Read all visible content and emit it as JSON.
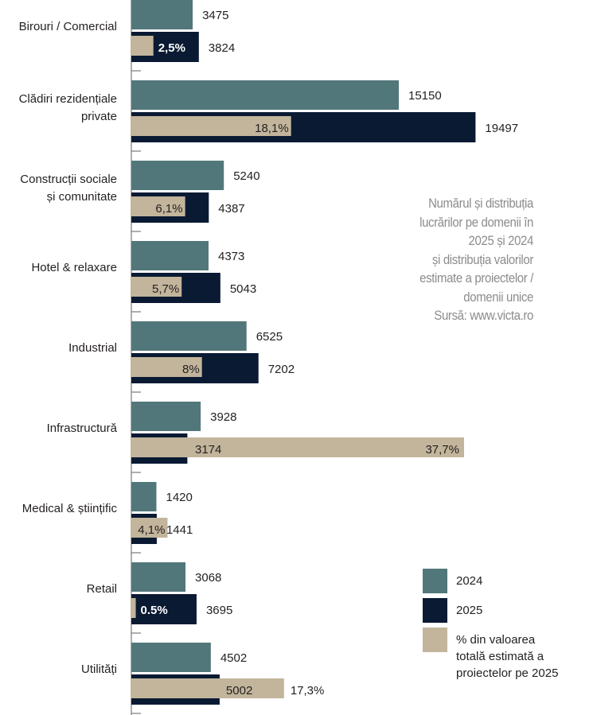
{
  "chart_data": {
    "type": "bar",
    "orientation": "horizontal",
    "title": "Numărul și distribuția lucrărilor pe domenii în 2025 și 2024 și distribuția valorilor estimate a proiectelor / domenii unice",
    "title_lines": [
      "Numărul și distribuția",
      "lucrărilor pe domenii în",
      "2025 și 2024",
      "și distribuția valorilor",
      "estimate a proiectelor /",
      "domenii unice",
      "Sursă: www.victa.ro"
    ],
    "source": "Sursă: www.victa.ro",
    "categories": [
      [
        "Birouri / Comercial"
      ],
      [
        "Clădiri rezidențiale",
        "private"
      ],
      [
        "Construcții sociale",
        "și comunitate"
      ],
      [
        "Hotel & relaxare"
      ],
      [
        "Industrial"
      ],
      [
        "Infrastructură"
      ],
      [
        "Medical & științific"
      ],
      [
        "Retail"
      ],
      [
        "Utilități"
      ]
    ],
    "series": [
      {
        "name": "2024",
        "color": "#52777a",
        "values": [
          3475,
          15150,
          5240,
          4373,
          6525,
          3928,
          1420,
          3068,
          4502
        ]
      },
      {
        "name": "2025",
        "color": "#0a1a33",
        "values": [
          3824,
          19497,
          4387,
          5043,
          7202,
          3174,
          1441,
          3695,
          5002
        ]
      },
      {
        "name": "% din valoarea totală estimată a proiectelor pe 2025",
        "color": "#c2b59b",
        "unit": "%",
        "values": [
          2.5,
          18.1,
          6.1,
          5.7,
          8,
          37.7,
          4.1,
          0.5,
          17.3
        ],
        "labels": [
          "2,5%",
          "18,1%",
          "6,1%",
          "5,7%",
          "8%",
          "37,7%",
          "4,1%",
          "0.5%",
          "17,3%"
        ]
      }
    ],
    "xlabel": "",
    "ylabel": "",
    "xlim_count": [
      0,
      22000
    ],
    "xlim_percent": [
      0,
      44
    ],
    "grid": false,
    "legend_position": "bottom-right"
  },
  "legend": {
    "items": [
      {
        "label": "2024",
        "color": "#52777a"
      },
      {
        "label": "2025",
        "color": "#0a1a33"
      },
      {
        "label": "% din valoarea totală estimată a proiectelor pe 2025",
        "color": "#c2b59b"
      }
    ]
  }
}
